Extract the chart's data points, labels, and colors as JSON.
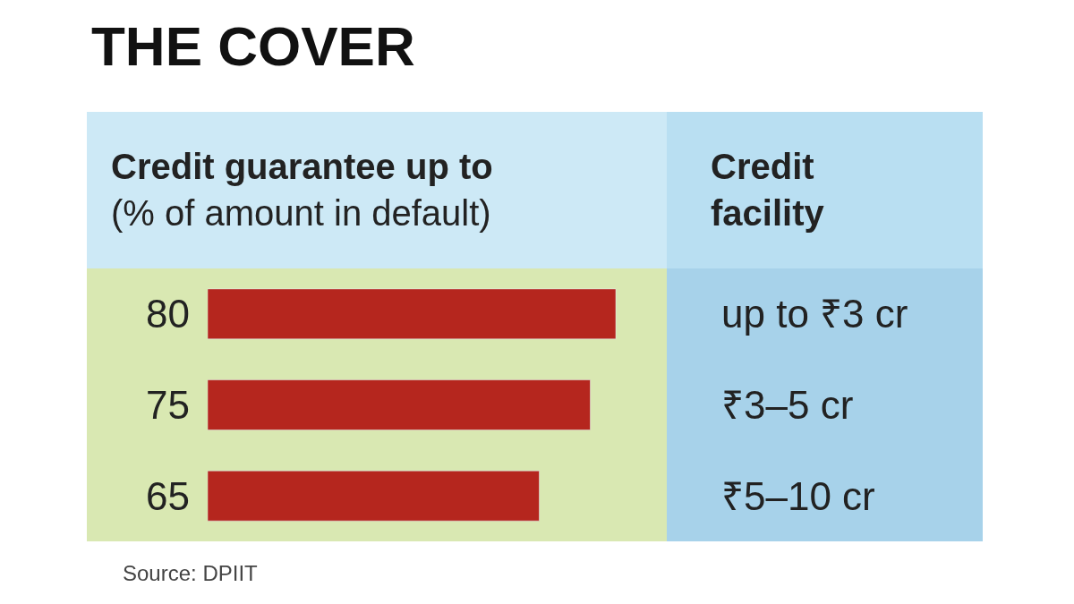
{
  "chart_data": {
    "type": "bar",
    "orientation": "horizontal",
    "title": "THE COVER",
    "xlabel": "Credit guarantee up to\n(% of amount in default)",
    "ylabel": "Credit\nfacility",
    "categories": [
      "up to ₹3 cr",
      "₹3–5 cr",
      "₹5–10 cr"
    ],
    "values": [
      80,
      75,
      65
    ],
    "color": "#b5261e",
    "data_labels": true,
    "xlim": [
      0,
      90
    ],
    "tick_labels": "y",
    "annotations": [
      "Source: DPIIT"
    ]
  }
}
